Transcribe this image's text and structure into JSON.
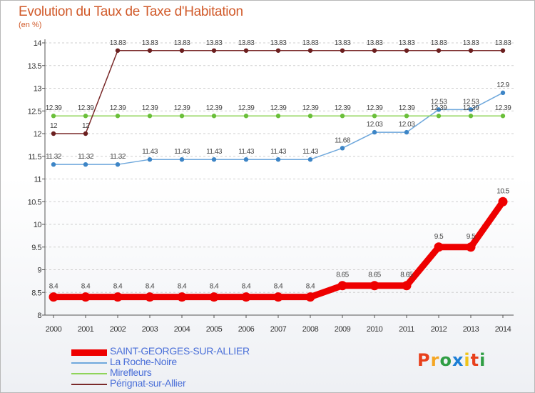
{
  "header": {
    "title": "Evolution du Taux de Taxe d'Habitation",
    "unit": "(en %)"
  },
  "logo": {
    "text": "Proxiti",
    "colors": [
      "#e8401c",
      "#f5a623",
      "#2f9e44",
      "#1c7ed6",
      "#f0c419",
      "#e8401c",
      "#2f9e44"
    ]
  },
  "chart_data": {
    "type": "line",
    "title": "Evolution du Taux de Taxe d'Habitation",
    "ylabel": "(en %)",
    "xlabel": "",
    "categories": [
      "2000",
      "2001",
      "2002",
      "2003",
      "2004",
      "2005",
      "2006",
      "2007",
      "2008",
      "2009",
      "2010",
      "2011",
      "2012",
      "2013",
      "2014"
    ],
    "ylim": [
      8,
      14
    ],
    "yticks": [
      "8",
      "8.5",
      "9",
      "9.5",
      "10",
      "10.5",
      "11",
      "11.5",
      "12",
      "12.5",
      "13",
      "13.5",
      "14"
    ],
    "grid": "horizontal dashed",
    "legend_position": "bottom",
    "series": [
      {
        "name": "SAINT-GEORGES-SUR-ALLIER",
        "color": "#ee0000",
        "dot_color": "#ee0000",
        "width": 9,
        "values": [
          8.4,
          8.4,
          8.4,
          8.4,
          8.4,
          8.4,
          8.4,
          8.4,
          8.4,
          8.65,
          8.65,
          8.65,
          9.5,
          9.5,
          10.5
        ],
        "labels": [
          "8.4",
          "8.4",
          "8.4",
          "8.4",
          "8.4",
          "8.4",
          "8.4",
          "8.4",
          "8.4",
          "8.65",
          "8.65",
          "8.65",
          "9.5",
          "9.5",
          "10.5"
        ]
      },
      {
        "name": "La Roche-Noire",
        "color": "#6fa8dc",
        "dot_color": "#3d85c6",
        "width": 1.5,
        "values": [
          11.32,
          11.32,
          11.32,
          11.43,
          11.43,
          11.43,
          11.43,
          11.43,
          11.43,
          11.68,
          12.03,
          12.03,
          12.53,
          12.53,
          12.9
        ],
        "labels": [
          "11.32",
          "11.32",
          "11.32",
          "11.43",
          "11.43",
          "11.43",
          "11.43",
          "11.43",
          "11.43",
          "11.68",
          "12.03",
          "12.03",
          "12.53",
          "12.53",
          "12.9"
        ]
      },
      {
        "name": "Mirefleurs",
        "color": "#8fd45a",
        "dot_color": "#6abf3a",
        "width": 1.5,
        "values": [
          12.39,
          12.39,
          12.39,
          12.39,
          12.39,
          12.39,
          12.39,
          12.39,
          12.39,
          12.39,
          12.39,
          12.39,
          12.39,
          12.39,
          12.39
        ],
        "labels": [
          "12.39",
          "12.39",
          "12.39",
          "12.39",
          "12.39",
          "12.39",
          "12.39",
          "12.39",
          "12.39",
          "12.39",
          "12.39",
          "12.39",
          "12.39",
          "12.39",
          "12.39"
        ]
      },
      {
        "name": "Pérignat-sur-Allier",
        "color": "#7a2a2a",
        "dot_color": "#6b1f1f",
        "width": 1.5,
        "values": [
          12,
          12,
          13.83,
          13.83,
          13.83,
          13.83,
          13.83,
          13.83,
          13.83,
          13.83,
          13.83,
          13.83,
          13.83,
          13.83,
          13.83
        ],
        "labels": [
          "12",
          "12",
          "13.83",
          "13.83",
          "13.83",
          "13.83",
          "13.83",
          "13.83",
          "13.83",
          "13.83",
          "13.83",
          "13.83",
          "13.83",
          "13.83",
          "13.83"
        ]
      }
    ]
  }
}
